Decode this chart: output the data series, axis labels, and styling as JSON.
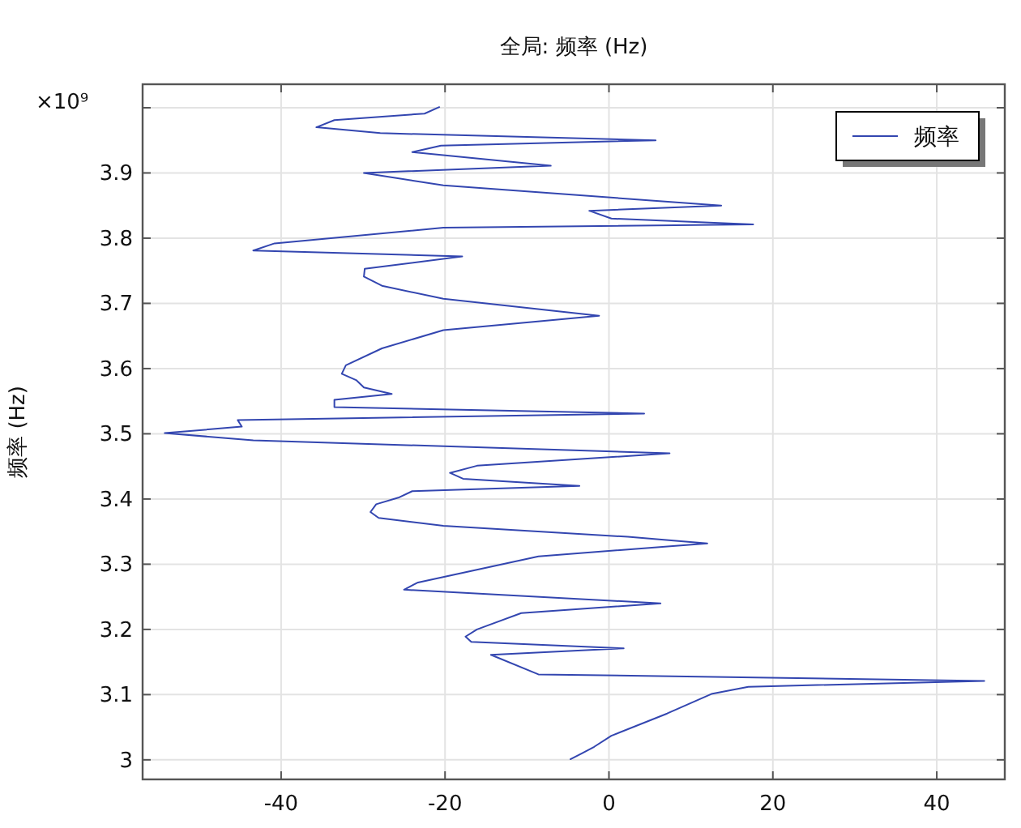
{
  "chart_data": {
    "type": "line",
    "title": "全局: 频率 (Hz)",
    "ylabel": "频率 (Hz)",
    "annotations": [
      "×10⁹"
    ],
    "x": [
      -20.7,
      -22.5,
      -33.5,
      -35.7,
      -27.9,
      5.7,
      -20.5,
      -24.0,
      -7.1,
      -29.9,
      -20.2,
      13.7,
      -2.4,
      0.3,
      17.6,
      -20.2,
      -40.8,
      -43.4,
      -17.9,
      -29.8,
      -29.9,
      -27.7,
      -20.2,
      -1.2,
      -20.2,
      -27.7,
      -32.1,
      -32.6,
      -30.8,
      -29.9,
      -26.5,
      -33.5,
      -33.5,
      4.3,
      -45.3,
      -44.8,
      -54.2,
      -43.4,
      7.4,
      -16.1,
      -19.4,
      -17.8,
      -3.6,
      -24.0,
      -25.7,
      -28.4,
      -29.1,
      -28.1,
      -20.2,
      2.3,
      12.0,
      -8.6,
      -23.3,
      -25.0,
      6.3,
      -10.7,
      -16.1,
      -17.5,
      -16.8,
      1.8,
      -14.4,
      -8.6,
      45.8,
      17.0,
      12.5,
      7.1,
      0.3,
      -1.8,
      -3.3,
      -4.7
    ],
    "series": [
      {
        "name": "频率",
        "color": "#3346b0",
        "values": [
          4.001,
          3.991,
          3.981,
          3.97,
          3.961,
          3.95,
          3.942,
          3.932,
          3.911,
          3.9,
          3.881,
          3.85,
          3.842,
          3.83,
          3.821,
          3.816,
          3.792,
          3.781,
          3.772,
          3.753,
          3.741,
          3.727,
          3.707,
          3.681,
          3.659,
          3.631,
          3.605,
          3.592,
          3.582,
          3.571,
          3.561,
          3.552,
          3.541,
          3.531,
          3.521,
          3.511,
          3.501,
          3.49,
          3.47,
          3.451,
          3.44,
          3.431,
          3.42,
          3.412,
          3.402,
          3.392,
          3.38,
          3.371,
          3.359,
          3.342,
          3.332,
          3.312,
          3.272,
          3.261,
          3.24,
          3.225,
          3.2,
          3.189,
          3.181,
          3.171,
          3.161,
          3.131,
          3.121,
          3.112,
          3.101,
          3.071,
          3.037,
          3.02,
          3.01,
          3.001
        ]
      }
    ],
    "xlim": [
      -56.9,
      48.3
    ],
    "xticks": [
      -40,
      -20,
      0,
      20,
      40
    ],
    "ylim": [
      2.97,
      4.036
    ],
    "yticks": [
      {
        "value": 3,
        "label": "3"
      },
      3.1,
      3.2,
      3.3,
      3.4,
      3.5,
      3.6,
      3.7,
      3.8,
      3.9,
      {
        "value": 4,
        "label": null
      }
    ],
    "grid": true,
    "legend": "top right",
    "line_style": "solid",
    "marker": "none"
  }
}
